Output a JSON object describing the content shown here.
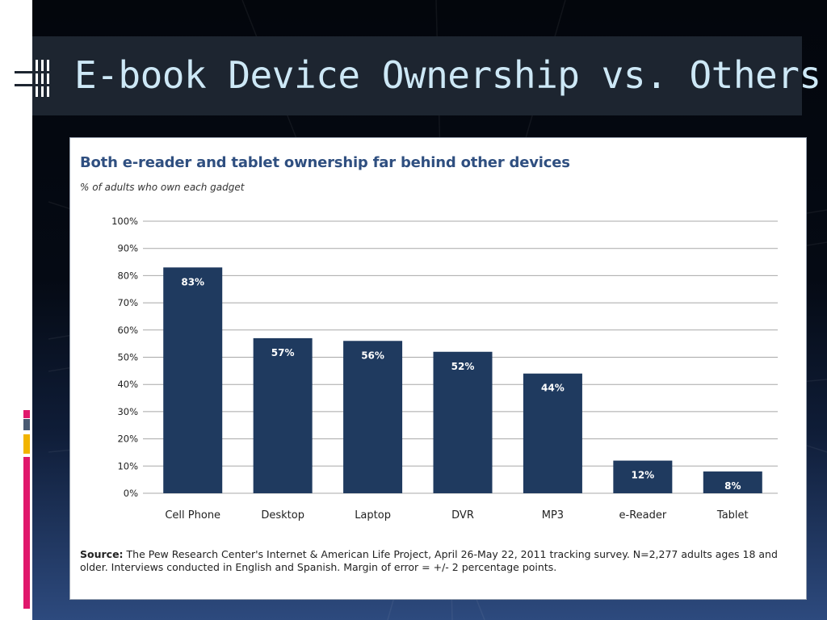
{
  "slide": {
    "title": "E-book Device Ownership vs. Others"
  },
  "chart_data": {
    "type": "bar",
    "title": "Both e-reader and tablet ownership far behind other devices",
    "subtitle": "% of adults who own each gadget",
    "categories": [
      "Cell Phone",
      "Desktop",
      "Laptop",
      "DVR",
      "MP3",
      "e-Reader",
      "Tablet"
    ],
    "values": [
      83,
      57,
      56,
      52,
      44,
      12,
      8
    ],
    "data_labels": [
      "83%",
      "57%",
      "56%",
      "52%",
      "44%",
      "12%",
      "8%"
    ],
    "y_ticks": [
      "0%",
      "10%",
      "20%",
      "30%",
      "40%",
      "50%",
      "60%",
      "70%",
      "80%",
      "90%",
      "100%"
    ],
    "ylim": [
      0,
      100
    ],
    "grid": true,
    "bar_color": "#1f3a5f",
    "label_color": "#ffffff",
    "xlabel": "",
    "ylabel": ""
  },
  "source": {
    "label": "Source:",
    "text": " The Pew Research Center's Internet & American Life Project, April 26-May 22, 2011 tracking survey. N=2,277 adults ages 18 and older. Interviews conducted in English and Spanish. Margin of error = +/- 2 percentage points."
  },
  "colors": {
    "title_text": "#cde8f6",
    "title_bar": "#1d2530",
    "chart_title": "#2f4f80",
    "accent_pink": "#e0186c",
    "accent_gray": "#4a5a72",
    "accent_gold": "#f2b400"
  }
}
